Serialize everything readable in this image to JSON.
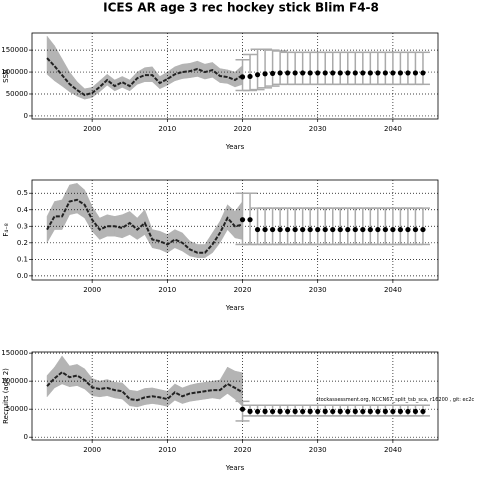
{
  "chart_data": [
    {
      "type": "line",
      "title": "ICES AR age 3 rec hockey stick Blim F4-8",
      "ylabel": "SSB",
      "xlabel": "Years",
      "x": [
        1994,
        1995,
        1996,
        1997,
        1998,
        1999,
        2000,
        2001,
        2002,
        2003,
        2004,
        2005,
        2006,
        2007,
        2008,
        2009,
        2010,
        2011,
        2012,
        2013,
        2014,
        2015,
        2016,
        2017,
        2018,
        2019,
        2020
      ],
      "values": [
        131800,
        113600,
        93000,
        72700,
        59000,
        47700,
        52300,
        65900,
        81800,
        68000,
        77000,
        68000,
        86000,
        93000,
        93000,
        75000,
        84000,
        95000,
        100000,
        102000,
        107000,
        100000,
        104500,
        91000,
        88600,
        82000,
        93000
      ],
      "lower": [
        95000,
        80000,
        68000,
        55000,
        45000,
        38000,
        42000,
        55000,
        70000,
        57000,
        65000,
        57000,
        72000,
        78000,
        78000,
        62000,
        70000,
        80000,
        85000,
        87000,
        90000,
        84000,
        88000,
        76000,
        74000,
        66000,
        72000
      ],
      "upper": [
        182000,
        160000,
        130000,
        100000,
        78000,
        62000,
        65000,
        80000,
        95000,
        82000,
        90000,
        82000,
        100000,
        110000,
        112000,
        90000,
        100000,
        112000,
        118000,
        120000,
        125000,
        118000,
        122000,
        108000,
        105000,
        100000,
        115000
      ],
      "forecast_x": [
        2020,
        2021,
        2022,
        2023,
        2024,
        2025,
        2026,
        2027,
        2028,
        2029,
        2030,
        2031,
        2032,
        2033,
        2034,
        2035,
        2036,
        2037,
        2038,
        2039,
        2040,
        2041,
        2042,
        2043,
        2044
      ],
      "forecast_values": [
        89000,
        90000,
        94000,
        96000,
        97000,
        98000,
        98000,
        98000,
        98000,
        98000,
        98000,
        98000,
        98000,
        98000,
        98000,
        98000,
        98000,
        98000,
        98000,
        98000,
        98000,
        98000,
        98000,
        98000,
        98000
      ],
      "forecast_lower": [
        58000,
        58000,
        60000,
        64000,
        68000,
        72000,
        72000,
        72000,
        72000,
        72000,
        72000,
        72000,
        72000,
        72000,
        72000,
        72000,
        72000,
        72000,
        72000,
        72000,
        72000,
        72000,
        72000,
        72000,
        72000
      ],
      "forecast_upper": [
        128000,
        140000,
        152000,
        152000,
        150000,
        148000,
        145000,
        145000,
        145000,
        145000,
        145000,
        145000,
        145000,
        145000,
        145000,
        145000,
        145000,
        145000,
        145000,
        145000,
        145000,
        145000,
        145000,
        145000,
        145000
      ],
      "xlim": [
        1992,
        2046
      ],
      "xticks": [
        2000,
        2010,
        2020,
        2030,
        2040
      ],
      "ylim": [
        -7000,
        189000
      ],
      "yticks": [
        0,
        50000,
        100000,
        150000
      ],
      "grid": true,
      "line_color": "#222222",
      "band_color": "#b4b4b4",
      "point_color": "#000000",
      "bar_color": "#aaaaaa"
    },
    {
      "type": "line",
      "ylabel": "F₄₋₈",
      "xlabel": "Years",
      "x": [
        1994,
        1995,
        1996,
        1997,
        1998,
        1999,
        2000,
        2001,
        2002,
        2003,
        2004,
        2005,
        2006,
        2007,
        2008,
        2009,
        2010,
        2011,
        2012,
        2013,
        2014,
        2015,
        2016,
        2017,
        2018,
        2019,
        2020
      ],
      "values": [
        0.28,
        0.36,
        0.36,
        0.45,
        0.46,
        0.43,
        0.34,
        0.28,
        0.3,
        0.3,
        0.29,
        0.32,
        0.28,
        0.32,
        0.22,
        0.21,
        0.19,
        0.22,
        0.2,
        0.16,
        0.14,
        0.14,
        0.19,
        0.26,
        0.35,
        0.3,
        0.31
      ],
      "lower": [
        0.2,
        0.28,
        0.28,
        0.37,
        0.38,
        0.35,
        0.27,
        0.22,
        0.24,
        0.24,
        0.23,
        0.25,
        0.22,
        0.25,
        0.17,
        0.16,
        0.14,
        0.17,
        0.15,
        0.12,
        0.11,
        0.11,
        0.14,
        0.2,
        0.28,
        0.23,
        0.22
      ],
      "upper": [
        0.36,
        0.45,
        0.46,
        0.55,
        0.56,
        0.52,
        0.42,
        0.35,
        0.37,
        0.36,
        0.37,
        0.39,
        0.35,
        0.4,
        0.28,
        0.27,
        0.25,
        0.28,
        0.26,
        0.21,
        0.19,
        0.19,
        0.26,
        0.33,
        0.43,
        0.39,
        0.45
      ],
      "forecast_x": [
        2020,
        2021,
        2022,
        2023,
        2024,
        2025,
        2026,
        2027,
        2028,
        2029,
        2030,
        2031,
        2032,
        2033,
        2034,
        2035,
        2036,
        2037,
        2038,
        2039,
        2040,
        2041,
        2042,
        2043,
        2044
      ],
      "forecast_values": [
        0.34,
        0.34,
        0.28,
        0.28,
        0.28,
        0.28,
        0.28,
        0.28,
        0.28,
        0.28,
        0.28,
        0.28,
        0.28,
        0.28,
        0.28,
        0.28,
        0.28,
        0.28,
        0.28,
        0.28,
        0.28,
        0.28,
        0.28,
        0.28,
        0.28
      ],
      "forecast_lower": [
        0.19,
        0.19,
        0.19,
        0.19,
        0.19,
        0.19,
        0.19,
        0.19,
        0.19,
        0.19,
        0.19,
        0.19,
        0.19,
        0.19,
        0.19,
        0.19,
        0.19,
        0.19,
        0.19,
        0.19,
        0.19,
        0.19,
        0.19,
        0.19,
        0.19
      ],
      "forecast_upper": [
        0.5,
        0.5,
        0.41,
        0.41,
        0.41,
        0.41,
        0.41,
        0.41,
        0.41,
        0.41,
        0.41,
        0.41,
        0.41,
        0.41,
        0.41,
        0.41,
        0.41,
        0.41,
        0.41,
        0.41,
        0.41,
        0.41,
        0.41,
        0.41,
        0.41
      ],
      "xlim": [
        1992,
        2046
      ],
      "xticks": [
        2000,
        2010,
        2020,
        2030,
        2040
      ],
      "ylim": [
        -0.025,
        0.58
      ],
      "yticks": [
        {
          "value": 0,
          "label": "0.0"
        },
        0.1,
        0.2,
        0.3,
        0.4,
        0.5
      ],
      "grid": true,
      "line_color": "#222222",
      "band_color": "#b4b4b4",
      "point_color": "#000000",
      "bar_color": "#aaaaaa"
    },
    {
      "type": "line",
      "ylabel": "Recruits (age 2)",
      "xlabel": "Years",
      "annotation": "stockassessment.org, NCCN67_split_tsb_sca, r16200 , git: ec2c",
      "x": [
        1994,
        1995,
        1996,
        1997,
        1998,
        1999,
        2000,
        2001,
        2002,
        2003,
        2004,
        2005,
        2006,
        2007,
        2008,
        2009,
        2010,
        2011,
        2012,
        2013,
        2014,
        2015,
        2016,
        2017,
        2018,
        2019,
        2020
      ],
      "values": [
        91000,
        105000,
        116000,
        107000,
        110000,
        102000,
        89000,
        86000,
        88000,
        84000,
        82000,
        68000,
        66000,
        71000,
        73000,
        71000,
        68000,
        80000,
        73000,
        78000,
        80000,
        82000,
        84000,
        84000,
        95000,
        88000,
        80000
      ],
      "lower": [
        72000,
        88000,
        95000,
        90000,
        92000,
        86000,
        74000,
        72000,
        74000,
        70000,
        68000,
        56000,
        54000,
        58000,
        60000,
        58000,
        55000,
        66000,
        60000,
        64000,
        66000,
        68000,
        70000,
        68000,
        78000,
        68000,
        55000
      ],
      "upper": [
        110000,
        125000,
        145000,
        127000,
        130000,
        122000,
        105000,
        100000,
        103000,
        98000,
        97000,
        84000,
        82000,
        87000,
        88000,
        85000,
        82000,
        95000,
        88000,
        93000,
        96000,
        98000,
        100000,
        102000,
        125000,
        118000,
        115000
      ],
      "forecast_x": [
        2020,
        2021,
        2022,
        2023,
        2024,
        2025,
        2026,
        2027,
        2028,
        2029,
        2030,
        2031,
        2032,
        2033,
        2034,
        2035,
        2036,
        2037,
        2038,
        2039,
        2040,
        2041,
        2042,
        2043,
        2044
      ],
      "forecast_values": [
        50000,
        46000,
        46000,
        46000,
        46000,
        46000,
        46000,
        46000,
        46000,
        46000,
        46000,
        46000,
        46000,
        46000,
        46000,
        46000,
        46000,
        46000,
        46000,
        46000,
        46000,
        46000,
        46000,
        46000,
        46000
      ],
      "forecast_lower": [
        29000,
        38000,
        38000,
        38000,
        38000,
        38000,
        38000,
        38000,
        38000,
        38000,
        38000,
        38000,
        38000,
        38000,
        38000,
        38000,
        38000,
        38000,
        38000,
        38000,
        38000,
        38000,
        38000,
        38000,
        38000
      ],
      "forecast_upper": [
        64000,
        57000,
        57000,
        57000,
        57000,
        57000,
        57000,
        57000,
        57000,
        57000,
        57000,
        57000,
        57000,
        57000,
        57000,
        57000,
        57000,
        57000,
        57000,
        57000,
        57000,
        57000,
        57000,
        57000,
        57000
      ],
      "xlim": [
        1992,
        2046
      ],
      "xticks": [
        2000,
        2010,
        2020,
        2030,
        2040
      ],
      "ylim": [
        -5000,
        152000
      ],
      "yticks": [
        0,
        50000,
        100000,
        150000
      ],
      "grid": true,
      "line_color": "#222222",
      "band_color": "#b4b4b4",
      "point_color": "#000000",
      "bar_color": "#aaaaaa"
    }
  ]
}
